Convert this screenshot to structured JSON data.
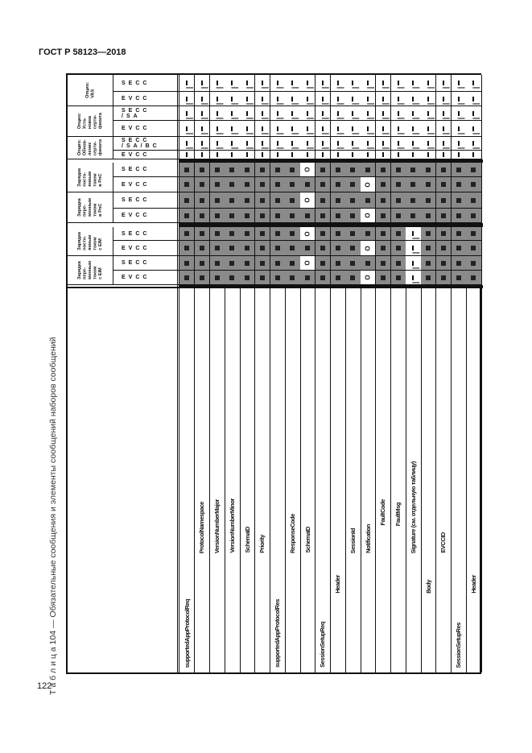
{
  "document": {
    "header": "ГОСТ Р 58123—2018",
    "page_number": "122",
    "caption": "Т а б л и ц а  104 — Обязательные сообщения и элементы сообщений наборов сообщений"
  },
  "legend_values": {
    "M": "M",
    "O": "O",
    "dash": "–"
  },
  "groups": [
    {
      "label": "Опцио:\nVAS",
      "subs": [
        "SECC",
        "EVCC"
      ]
    },
    {
      "label": "Опцио:\nУста-\nновка\nсерти-\nфиката",
      "subs": [
        "SECC\n/SA",
        "EVCC"
      ]
    },
    {
      "label": "Опцио:\nОбнов-\nление\nсерти-\nфиката",
      "subs": [
        "SECC\n/SA/BC",
        "EVCC"
      ]
    },
    {
      "label": "Зарядка\nпосто-\nянным\nтоком\nв PnC",
      "subs": [
        "SECC",
        "EVCC"
      ]
    },
    {
      "label": "Зарядка\nпере-\nменным\nтоком\nв PnC",
      "subs": [
        "SECC",
        "EVCC"
      ]
    },
    {
      "label": "Зарядка\nпосто-\nянным\nтоком\nс EIM",
      "subs": [
        "SECC",
        "EVCC"
      ]
    },
    {
      "label": "Зарядка\nпере-\nменным\nтоком\nс EIM",
      "subs": [
        "SECC",
        "EVCC"
      ]
    }
  ],
  "rows": [
    {
      "name": "supportedAppProtocolReq",
      "level": 0
    },
    {
      "name": "ProtocolNamespace",
      "level": 2
    },
    {
      "name": "VersionNumberMajor",
      "level": 2
    },
    {
      "name": "VersionNumberMinor",
      "level": 2
    },
    {
      "name": "SchemaID",
      "level": 2
    },
    {
      "name": "Priority",
      "level": 2
    },
    {
      "name": "supportedAppProtocolRes",
      "level": 0
    },
    {
      "name": "ResponseCode",
      "level": 2
    },
    {
      "name": "SchemaID",
      "level": 2
    },
    {
      "name": "SessionSetupReq",
      "level": 0
    },
    {
      "name": "Header",
      "level": 1
    },
    {
      "name": "SessionId",
      "level": 2
    },
    {
      "name": "Notification",
      "level": 2
    },
    {
      "name": "FaultCode",
      "level": 3
    },
    {
      "name": "FaultMsg",
      "level": 3
    },
    {
      "name": "Signature (см. отдельную таблицу)",
      "level": 2
    },
    {
      "name": "Body",
      "level": 1
    },
    {
      "name": "EVCCID",
      "level": 2
    },
    {
      "name": "SessionSetupRes",
      "level": 0
    },
    {
      "name": "Header",
      "level": 1
    }
  ],
  "cells": [
    [
      "–",
      "–",
      "–",
      "–",
      "–",
      "–",
      "–",
      "–",
      "–",
      "–",
      "–",
      "–",
      "–",
      "–",
      "–",
      "–",
      "–",
      "–",
      "–",
      "–"
    ],
    [
      "–",
      "–",
      "–",
      "–",
      "–",
      "–",
      "–",
      "–",
      "–",
      "–",
      "–",
      "–",
      "–",
      "–",
      "–",
      "–",
      "–",
      "–",
      "–",
      "–"
    ],
    [
      "–",
      "–",
      "–",
      "–",
      "–",
      "–",
      "–",
      "–",
      "–",
      "–",
      "–",
      "–",
      "–",
      "–",
      "–",
      "–",
      "–",
      "–",
      "–",
      "–"
    ],
    [
      "–",
      "–",
      "–",
      "–",
      "–",
      "–",
      "–",
      "–",
      "–",
      "–",
      "–",
      "–",
      "–",
      "–",
      "–",
      "–",
      "–",
      "–",
      "–",
      "–"
    ],
    [
      "–",
      "–",
      "–",
      "–",
      "–",
      "–",
      "–",
      "–",
      "–",
      "–",
      "–",
      "–",
      "–",
      "–",
      "–",
      "–",
      "–",
      "–",
      "–",
      "–"
    ],
    [
      "–",
      "–",
      "–",
      "–",
      "–",
      "–",
      "–",
      "–",
      "–",
      "–",
      "–",
      "–",
      "–",
      "–",
      "–",
      "–",
      "–",
      "–",
      "–",
      "–"
    ],
    [
      "M",
      "M",
      "M",
      "M",
      "M",
      "M",
      "M",
      "M",
      "O",
      "M",
      "M",
      "M",
      "M",
      "M",
      "M",
      "M",
      "M",
      "M",
      "M",
      "M"
    ],
    [
      "M",
      "M",
      "M",
      "M",
      "M",
      "M",
      "M",
      "M",
      "M",
      "M",
      "M",
      "M",
      "O",
      "M",
      "M",
      "M",
      "M",
      "M",
      "M",
      "M"
    ],
    [
      "M",
      "M",
      "M",
      "M",
      "M",
      "M",
      "M",
      "M",
      "O",
      "M",
      "M",
      "M",
      "M",
      "M",
      "M",
      "M",
      "M",
      "M",
      "M",
      "M"
    ],
    [
      "M",
      "M",
      "M",
      "M",
      "M",
      "M",
      "M",
      "M",
      "M",
      "M",
      "M",
      "M",
      "O",
      "M",
      "M",
      "M",
      "M",
      "M",
      "M",
      "M"
    ],
    [
      "M",
      "M",
      "M",
      "M",
      "M",
      "M",
      "M",
      "M",
      "O",
      "M",
      "M",
      "M",
      "M",
      "M",
      "M",
      "–",
      "M",
      "M",
      "M",
      "M"
    ],
    [
      "M",
      "M",
      "M",
      "M",
      "M",
      "M",
      "M",
      "M",
      "M",
      "M",
      "M",
      "M",
      "O",
      "M",
      "M",
      "–",
      "M",
      "M",
      "M",
      "M"
    ],
    [
      "M",
      "M",
      "M",
      "M",
      "M",
      "M",
      "M",
      "M",
      "O",
      "M",
      "M",
      "M",
      "M",
      "M",
      "M",
      "–",
      "M",
      "M",
      "M",
      "M"
    ],
    [
      "M",
      "M",
      "M",
      "M",
      "M",
      "M",
      "M",
      "M",
      "M",
      "M",
      "M",
      "M",
      "O",
      "M",
      "M",
      "–",
      "M",
      "M",
      "M",
      "M"
    ]
  ],
  "colors": {
    "mandatory_fill": "#8a8a8a",
    "border": "#111111"
  }
}
